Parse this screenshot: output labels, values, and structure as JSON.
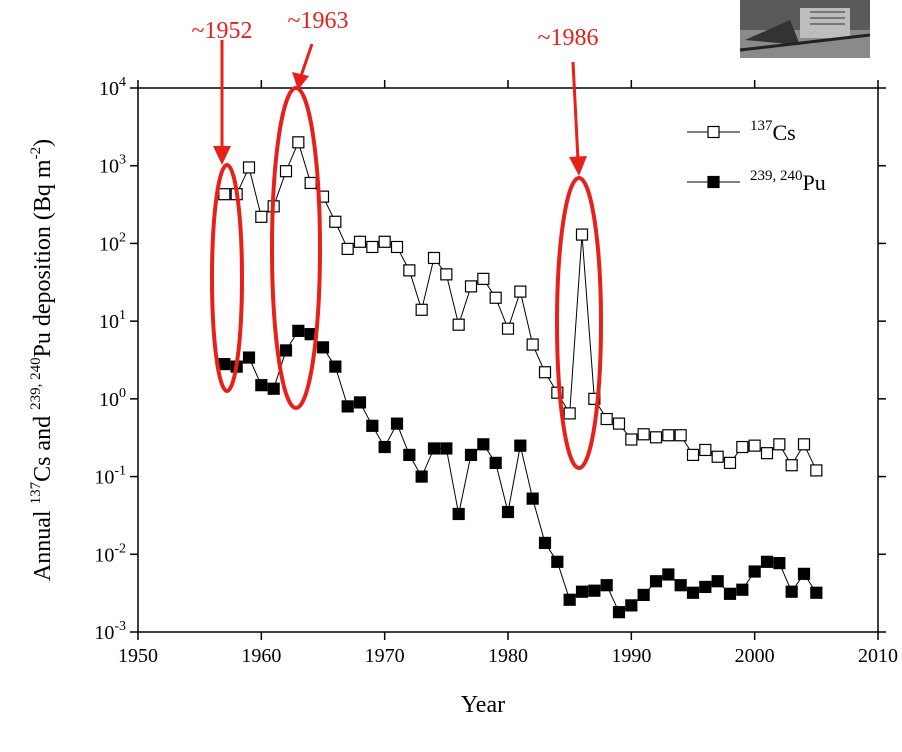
{
  "chart_data": {
    "type": "line",
    "log_y": true,
    "x_label": "Year",
    "y_label": [
      "Annual ",
      "137",
      "Cs and ",
      "239, 240",
      "Pu deposition (Bq m",
      "-2",
      ")"
    ],
    "x": [
      1957,
      1958,
      1959,
      1960,
      1961,
      1962,
      1963,
      1964,
      1965,
      1966,
      1967,
      1968,
      1969,
      1970,
      1971,
      1972,
      1973,
      1974,
      1975,
      1976,
      1977,
      1978,
      1979,
      1980,
      1981,
      1982,
      1983,
      1984,
      1985,
      1986,
      1987,
      1988,
      1989,
      1990,
      1991,
      1992,
      1993,
      1994,
      1995,
      1996,
      1997,
      1998,
      1999,
      2000,
      2001,
      2002,
      2003,
      2004,
      2005
    ],
    "series": [
      {
        "name": "Cs",
        "name_sup": "137",
        "color": "#000000",
        "marker": "open-square",
        "values": [
          430,
          430,
          950,
          220,
          300,
          850,
          2000,
          600,
          400,
          190,
          85,
          105,
          90,
          105,
          90,
          45,
          14,
          65,
          40,
          9,
          28,
          35,
          20,
          8,
          24,
          5,
          2.2,
          1.2,
          0.65,
          130,
          1.0,
          0.55,
          0.48,
          0.3,
          0.35,
          0.32,
          0.34,
          0.34,
          0.19,
          0.22,
          0.18,
          0.15,
          0.24,
          0.25,
          0.2,
          0.26,
          0.14,
          0.26,
          0.12
        ]
      },
      {
        "name": "Pu",
        "name_sup": "239, 240",
        "color": "#000000",
        "marker": "filled-square",
        "values": [
          2.8,
          2.6,
          3.4,
          1.5,
          1.35,
          4.2,
          7.5,
          6.8,
          4.6,
          2.6,
          0.8,
          0.9,
          0.45,
          0.24,
          0.48,
          0.19,
          0.1,
          0.23,
          0.23,
          0.033,
          0.19,
          0.26,
          0.15,
          0.035,
          0.25,
          0.052,
          0.014,
          0.008,
          0.0026,
          0.0033,
          0.0034,
          0.004,
          0.0018,
          0.0022,
          0.003,
          0.0045,
          0.0055,
          0.004,
          0.0032,
          0.0038,
          0.0045,
          0.0031,
          0.0035,
          0.006,
          0.008,
          0.0077,
          0.0033,
          0.0056,
          0.0032
        ]
      }
    ],
    "xlim": [
      1950,
      2010
    ],
    "xticks": [
      1950,
      1960,
      1970,
      1980,
      1990,
      2000,
      2010
    ],
    "ylim": [
      0.001,
      10000
    ],
    "yticks": [
      {
        "value": 0.001,
        "label": "10",
        "exponent": "-3"
      },
      {
        "value": 0.01,
        "label": "10",
        "exponent": "-2"
      },
      {
        "value": 0.1,
        "label": "10",
        "exponent": "-1"
      },
      {
        "value": 1,
        "label": "10",
        "exponent": "0"
      },
      {
        "value": 10,
        "label": "10",
        "exponent": "1"
      },
      {
        "value": 100,
        "label": "10",
        "exponent": "2"
      },
      {
        "value": 1000,
        "label": "10",
        "exponent": "3"
      },
      {
        "value": 10000,
        "label": "10",
        "exponent": "4"
      }
    ],
    "legend": "top-right",
    "annotations": [
      "~1952",
      "~1963",
      "~1986"
    ],
    "annotation_color": "#e8201a"
  }
}
